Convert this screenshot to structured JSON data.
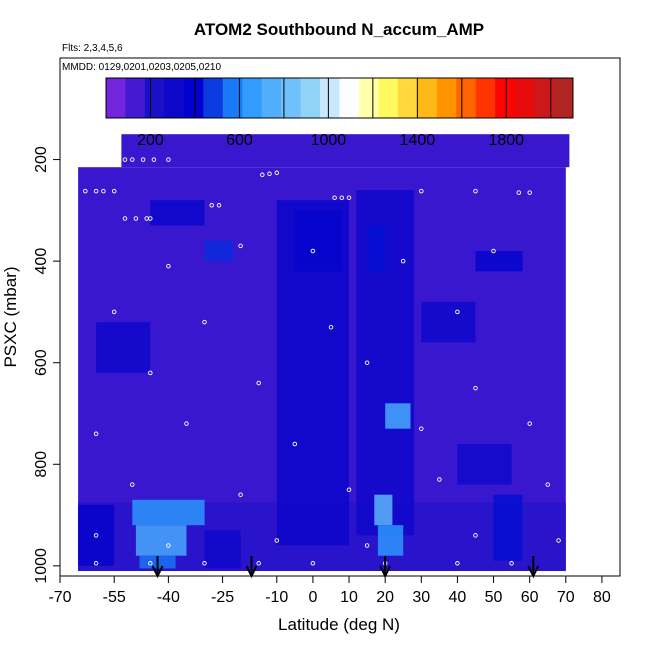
{
  "chart_data": {
    "type": "heatmap",
    "title": "ATOM2 Southbound N_accum_AMP",
    "subtitle_flights": "Flts: 2,3,4,5,6",
    "subtitle_dates": "MMDD: 0129,0201,0203,0205,0210",
    "xlabel": "Latitude (deg N)",
    "ylabel": "PSXC (mbar)",
    "xlim": [
      -70,
      85
    ],
    "ylim": [
      1020,
      0
    ],
    "x_ticks": [
      -70,
      -55,
      -40,
      -25,
      -10,
      0,
      10,
      20,
      30,
      40,
      50,
      60,
      70,
      80
    ],
    "x_tick_labels": [
      "-70",
      "-55",
      "-40",
      "-25",
      "-10",
      "0",
      "10",
      "20",
      "30",
      "40",
      "50",
      "60",
      "70",
      "80"
    ],
    "y_ticks": [
      200,
      400,
      600,
      800,
      1000
    ],
    "y_tick_labels": [
      "200",
      "400",
      "600",
      "800",
      "1000"
    ],
    "colorbar": {
      "range": [
        0,
        2100
      ],
      "ticks": [
        200,
        600,
        1000,
        1400,
        1800
      ],
      "tick_labels": [
        "200",
        "600",
        "1000",
        "1400",
        "1800"
      ],
      "stops": [
        {
          "value": 0,
          "color": "#8a2be2"
        },
        {
          "value": 200,
          "color": "#1e10c8"
        },
        {
          "value": 400,
          "color": "#0000cd"
        },
        {
          "value": 600,
          "color": "#1e90ff"
        },
        {
          "value": 900,
          "color": "#87cefa"
        },
        {
          "value": 1100,
          "color": "#ffffff"
        },
        {
          "value": 1250,
          "color": "#ffff66"
        },
        {
          "value": 1500,
          "color": "#ffa500"
        },
        {
          "value": 1800,
          "color": "#ff0000"
        },
        {
          "value": 2100,
          "color": "#a52a2a"
        }
      ]
    },
    "flight_markers_lat": [
      -43,
      -17,
      20,
      61
    ],
    "cells": [
      {
        "lat": [
          -53,
          71
        ],
        "p": [
          150,
          215
        ],
        "v": 150
      },
      {
        "lat": [
          -65,
          70
        ],
        "p": [
          215,
          1010
        ],
        "v": 150
      },
      {
        "lat": [
          -65,
          70
        ],
        "p": [
          875,
          1010
        ],
        "v": 180
      },
      {
        "lat": [
          -50,
          -30
        ],
        "p": [
          870,
          920
        ],
        "v": 640
      },
      {
        "lat": [
          -49,
          -35
        ],
        "p": [
          920,
          980
        ],
        "v": 720
      },
      {
        "lat": [
          -48,
          -38
        ],
        "p": [
          980,
          1005
        ],
        "v": 560
      },
      {
        "lat": [
          -65,
          -55
        ],
        "p": [
          880,
          1000
        ],
        "v": 360
      },
      {
        "lat": [
          -30,
          -20
        ],
        "p": [
          930,
          1005
        ],
        "v": 300
      },
      {
        "lat": [
          -10,
          10
        ],
        "p": [
          280,
          960
        ],
        "v": 320
      },
      {
        "lat": [
          12,
          28
        ],
        "p": [
          260,
          940
        ],
        "v": 300
      },
      {
        "lat": [
          -5,
          8
        ],
        "p": [
          300,
          420
        ],
        "v": 360
      },
      {
        "lat": [
          -30,
          -22
        ],
        "p": [
          360,
          400
        ],
        "v": 460
      },
      {
        "lat": [
          -45,
          -30
        ],
        "p": [
          280,
          330
        ],
        "v": 330
      },
      {
        "lat": [
          15,
          20
        ],
        "p": [
          330,
          420
        ],
        "v": 420
      },
      {
        "lat": [
          17,
          22
        ],
        "p": [
          860,
          920
        ],
        "v": 780
      },
      {
        "lat": [
          18,
          25
        ],
        "p": [
          920,
          980
        ],
        "v": 640
      },
      {
        "lat": [
          20,
          27
        ],
        "p": [
          680,
          730
        ],
        "v": 720
      },
      {
        "lat": [
          50,
          58
        ],
        "p": [
          860,
          990
        ],
        "v": 420
      },
      {
        "lat": [
          45,
          58
        ],
        "p": [
          380,
          420
        ],
        "v": 360
      },
      {
        "lat": [
          30,
          45
        ],
        "p": [
          480,
          560
        ],
        "v": 300
      },
      {
        "lat": [
          -60,
          -45
        ],
        "p": [
          520,
          620
        ],
        "v": 300
      },
      {
        "lat": [
          40,
          55
        ],
        "p": [
          760,
          840
        ],
        "v": 290
      }
    ],
    "points": [
      {
        "lat": -57,
        "p": 200
      },
      {
        "lat": -55,
        "p": 200
      },
      {
        "lat": -52,
        "p": 200
      },
      {
        "lat": -50,
        "p": 200
      },
      {
        "lat": -47,
        "p": 200
      },
      {
        "lat": -44,
        "p": 200
      },
      {
        "lat": -40,
        "p": 200
      },
      {
        "lat": -63,
        "p": 262
      },
      {
        "lat": -60,
        "p": 262
      },
      {
        "lat": -58,
        "p": 262
      },
      {
        "lat": -55,
        "p": 262
      },
      {
        "lat": -52,
        "p": 316
      },
      {
        "lat": -49,
        "p": 316
      },
      {
        "lat": -46,
        "p": 316
      },
      {
        "lat": -45,
        "p": 316
      },
      {
        "lat": -28,
        "p": 290
      },
      {
        "lat": -26,
        "p": 290
      },
      {
        "lat": -14,
        "p": 230
      },
      {
        "lat": -12,
        "p": 228
      },
      {
        "lat": -10,
        "p": 226
      },
      {
        "lat": 6,
        "p": 275
      },
      {
        "lat": 8,
        "p": 275
      },
      {
        "lat": 10,
        "p": 275
      },
      {
        "lat": 30,
        "p": 262
      },
      {
        "lat": 45,
        "p": 262
      },
      {
        "lat": 57,
        "p": 265
      },
      {
        "lat": 60,
        "p": 265
      },
      {
        "lat": -40,
        "p": 410
      },
      {
        "lat": -20,
        "p": 370
      },
      {
        "lat": 0,
        "p": 380
      },
      {
        "lat": 25,
        "p": 400
      },
      {
        "lat": 50,
        "p": 380
      },
      {
        "lat": -55,
        "p": 500
      },
      {
        "lat": -30,
        "p": 520
      },
      {
        "lat": 5,
        "p": 530
      },
      {
        "lat": 40,
        "p": 500
      },
      {
        "lat": -45,
        "p": 620
      },
      {
        "lat": -15,
        "p": 640
      },
      {
        "lat": 15,
        "p": 600
      },
      {
        "lat": 45,
        "p": 650
      },
      {
        "lat": -60,
        "p": 740
      },
      {
        "lat": -35,
        "p": 720
      },
      {
        "lat": -5,
        "p": 760
      },
      {
        "lat": 30,
        "p": 730
      },
      {
        "lat": 60,
        "p": 720
      },
      {
        "lat": -50,
        "p": 840
      },
      {
        "lat": -20,
        "p": 860
      },
      {
        "lat": 10,
        "p": 850
      },
      {
        "lat": 35,
        "p": 830
      },
      {
        "lat": 65,
        "p": 840
      },
      {
        "lat": -60,
        "p": 940
      },
      {
        "lat": -40,
        "p": 960
      },
      {
        "lat": -10,
        "p": 950
      },
      {
        "lat": 15,
        "p": 960
      },
      {
        "lat": 45,
        "p": 940
      },
      {
        "lat": 68,
        "p": 950
      },
      {
        "lat": -60,
        "p": 995
      },
      {
        "lat": -45,
        "p": 995
      },
      {
        "lat": -30,
        "p": 995
      },
      {
        "lat": -15,
        "p": 995
      },
      {
        "lat": 0,
        "p": 995
      },
      {
        "lat": 20,
        "p": 995
      },
      {
        "lat": 40,
        "p": 995
      },
      {
        "lat": 55,
        "p": 995
      }
    ]
  }
}
